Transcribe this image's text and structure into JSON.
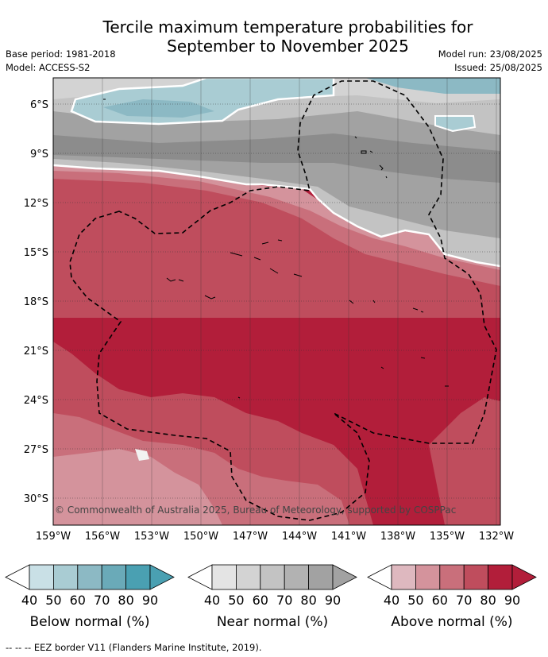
{
  "title_line1": "Tercile maximum temperature probabilities for",
  "title_line2": "September to November 2025",
  "base_period": "Base period: 1981-2018",
  "model": "Model: ACCESS-S2",
  "model_run": "Model run: 23/08/2025",
  "issued": "Issued: 25/08/2025",
  "copyright": "© Commonwealth of Australia 2025, Bureau of Meteorology, supported by COSPPac",
  "lat_labels": [
    "6°S",
    "9°S",
    "12°S",
    "15°S",
    "18°S",
    "21°S",
    "24°S",
    "27°S",
    "30°S"
  ],
  "lon_labels": [
    "159°W",
    "156°W",
    "153°W",
    "150°W",
    "147°W",
    "144°W",
    "141°W",
    "138°W",
    "135°W",
    "132°W"
  ],
  "colorbars": [
    {
      "title": "Below normal (%)",
      "ticks": [
        "40",
        "50",
        "60",
        "70",
        "80",
        "90"
      ],
      "colors": [
        "#ffffff",
        "#c9e0e6",
        "#a9ccd3",
        "#8cb9c4",
        "#6aaab8",
        "#4aa0b2"
      ]
    },
    {
      "title": "Near normal (%)",
      "ticks": [
        "40",
        "50",
        "60",
        "70",
        "80",
        "90"
      ],
      "colors": [
        "#ffffff",
        "#e4e4e4",
        "#d3d3d3",
        "#c3c3c3",
        "#b2b2b2",
        "#a2a2a2"
      ]
    },
    {
      "title": "Above normal (%)",
      "ticks": [
        "40",
        "50",
        "60",
        "70",
        "80",
        "90"
      ],
      "colors": [
        "#ffffff",
        "#deb8bf",
        "#d4939c",
        "#c96f7b",
        "#bf4d5d",
        "#b21e3a"
      ]
    }
  ],
  "footer": "-- -- -- EEZ border V11 (Flanders Marine Institute, 2019)."
}
